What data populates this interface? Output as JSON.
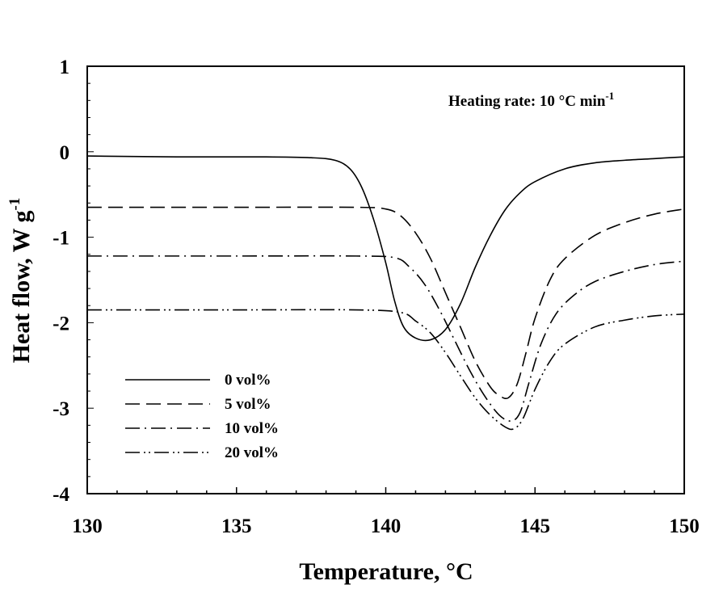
{
  "chart_data": {
    "type": "line",
    "title": "",
    "xlabel": "Temperature, °C",
    "ylabel": "Heat flow, W g",
    "ylabel_sup": "-1",
    "xlim": [
      130,
      150
    ],
    "ylim": [
      -4,
      1
    ],
    "xticks": [
      130,
      135,
      140,
      145,
      150
    ],
    "yticks": [
      1,
      0,
      -1,
      -2,
      -3,
      -4
    ],
    "grid": false,
    "legend_position": "bottom-left",
    "annotation": {
      "text": "Heating rate: 10 °C min",
      "sup": "-1"
    },
    "series": [
      {
        "name": "0 vol%",
        "dash": "solid",
        "x": [
          130,
          133,
          136,
          137.5,
          138.3,
          138.8,
          139.2,
          139.6,
          140,
          140.3,
          140.6,
          141,
          141.5,
          142,
          142.5,
          143,
          143.5,
          144,
          144.5,
          145,
          146,
          147,
          148,
          149,
          150
        ],
        "y": [
          -0.05,
          -0.06,
          -0.06,
          -0.07,
          -0.1,
          -0.2,
          -0.42,
          -0.8,
          -1.3,
          -1.75,
          -2.05,
          -2.18,
          -2.2,
          -2.08,
          -1.78,
          -1.35,
          -0.98,
          -0.68,
          -0.48,
          -0.35,
          -0.2,
          -0.13,
          -0.1,
          -0.08,
          -0.06
        ]
      },
      {
        "name": "5 vol%",
        "dash": "dash",
        "x": [
          130,
          135,
          139,
          140,
          140.5,
          141,
          141.5,
          142,
          142.5,
          143,
          143.5,
          143.8,
          144.1,
          144.4,
          144.7,
          145,
          145.5,
          146,
          147,
          148,
          149,
          150
        ],
        "y": [
          -0.65,
          -0.65,
          -0.65,
          -0.67,
          -0.75,
          -0.95,
          -1.25,
          -1.65,
          -2.05,
          -2.45,
          -2.75,
          -2.85,
          -2.88,
          -2.72,
          -2.35,
          -1.95,
          -1.5,
          -1.25,
          -0.98,
          -0.83,
          -0.73,
          -0.67
        ]
      },
      {
        "name": "10 vol%",
        "dash": "dashdot",
        "x": [
          130,
          135,
          139,
          140.3,
          140.8,
          141.3,
          141.8,
          142.3,
          142.8,
          143.3,
          143.8,
          144.2,
          144.5,
          144.8,
          145.2,
          145.7,
          146.3,
          147,
          148,
          149,
          150
        ],
        "y": [
          -1.22,
          -1.22,
          -1.22,
          -1.24,
          -1.35,
          -1.55,
          -1.85,
          -2.2,
          -2.55,
          -2.85,
          -3.08,
          -3.15,
          -3.05,
          -2.7,
          -2.25,
          -1.9,
          -1.68,
          -1.52,
          -1.4,
          -1.32,
          -1.28
        ]
      },
      {
        "name": "20 vol%",
        "dash": "dashdotdot",
        "x": [
          130,
          135,
          139,
          140.5,
          141,
          141.5,
          142,
          142.5,
          143,
          143.5,
          144,
          144.3,
          144.6,
          145,
          145.5,
          146,
          147,
          148,
          149,
          150
        ],
        "y": [
          -1.85,
          -1.85,
          -1.85,
          -1.88,
          -1.98,
          -2.12,
          -2.35,
          -2.62,
          -2.88,
          -3.08,
          -3.22,
          -3.24,
          -3.12,
          -2.78,
          -2.45,
          -2.25,
          -2.05,
          -1.97,
          -1.92,
          -1.9
        ]
      }
    ]
  }
}
